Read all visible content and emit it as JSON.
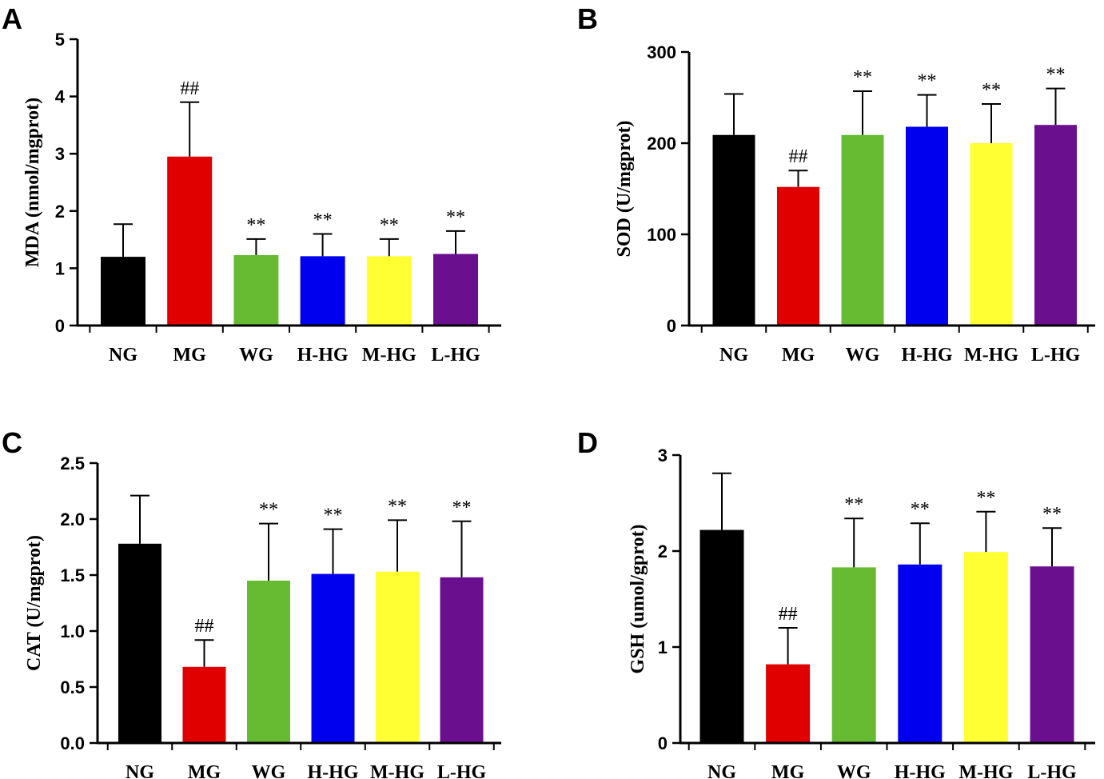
{
  "categories": [
    "NG",
    "MG",
    "WG",
    "H-HG",
    "M-HG",
    "L-HG"
  ],
  "colors": [
    "#000000",
    "#e00000",
    "#66bb33",
    "#0000ee",
    "#ffff33",
    "#6a0f8e"
  ],
  "chart_data": [
    {
      "panel": "A",
      "type": "bar",
      "ylabel": "MDA (nmol/mgprot)",
      "categories": [
        "NG",
        "MG",
        "WG",
        "H-HG",
        "M-HG",
        "L-HG"
      ],
      "values": [
        1.2,
        2.95,
        1.23,
        1.21,
        1.21,
        1.25
      ],
      "errors": [
        0.57,
        0.95,
        0.28,
        0.39,
        0.3,
        0.4
      ],
      "annotations": [
        "",
        "##",
        "**",
        "**",
        "**",
        "**"
      ],
      "ylim": [
        0,
        5
      ],
      "yticks": [
        0,
        1,
        2,
        3,
        4,
        5
      ],
      "ytick_labels": [
        "0",
        "1",
        "2",
        "3",
        "4",
        "5"
      ]
    },
    {
      "panel": "B",
      "type": "bar",
      "ylabel": "SOD (U/mgprot)",
      "categories": [
        "NG",
        "MG",
        "WG",
        "H-HG",
        "M-HG",
        "L-HG"
      ],
      "values": [
        209,
        152,
        209,
        218,
        200,
        220
      ],
      "errors": [
        45,
        18,
        48,
        35,
        43,
        40
      ],
      "annotations": [
        "",
        "##",
        "**",
        "**",
        "**",
        "**"
      ],
      "ylim": [
        0,
        300
      ],
      "yticks": [
        0,
        100,
        200,
        300
      ],
      "ytick_labels": [
        "0",
        "100",
        "200",
        "300"
      ]
    },
    {
      "panel": "C",
      "type": "bar",
      "ylabel": "CAT (U/mgprot)",
      "categories": [
        "NG",
        "MG",
        "WG",
        "H-HG",
        "M-HG",
        "L-HG"
      ],
      "values": [
        1.78,
        0.68,
        1.45,
        1.51,
        1.53,
        1.48
      ],
      "errors": [
        0.43,
        0.24,
        0.51,
        0.4,
        0.46,
        0.5
      ],
      "annotations": [
        "",
        "##",
        "**",
        "**",
        "**",
        "**"
      ],
      "ylim": [
        0,
        2.5
      ],
      "yticks": [
        0,
        0.5,
        1.0,
        1.5,
        2.0,
        2.5
      ],
      "ytick_labels": [
        "0.0",
        "0.5",
        "1.0",
        "1.5",
        "2.0",
        "2.5"
      ]
    },
    {
      "panel": "D",
      "type": "bar",
      "ylabel": "GSH (umol/gprot)",
      "categories": [
        "NG",
        "MG",
        "WG",
        "H-HG",
        "M-HG",
        "L-HG"
      ],
      "values": [
        2.22,
        0.82,
        1.83,
        1.86,
        1.99,
        1.84
      ],
      "errors": [
        0.59,
        0.38,
        0.51,
        0.43,
        0.42,
        0.4
      ],
      "annotations": [
        "",
        "##",
        "**",
        "**",
        "**",
        "**"
      ],
      "ylim": [
        0,
        3
      ],
      "yticks": [
        0,
        1,
        2,
        3
      ],
      "ytick_labels": [
        "0",
        "1",
        "2",
        "3"
      ]
    }
  ]
}
